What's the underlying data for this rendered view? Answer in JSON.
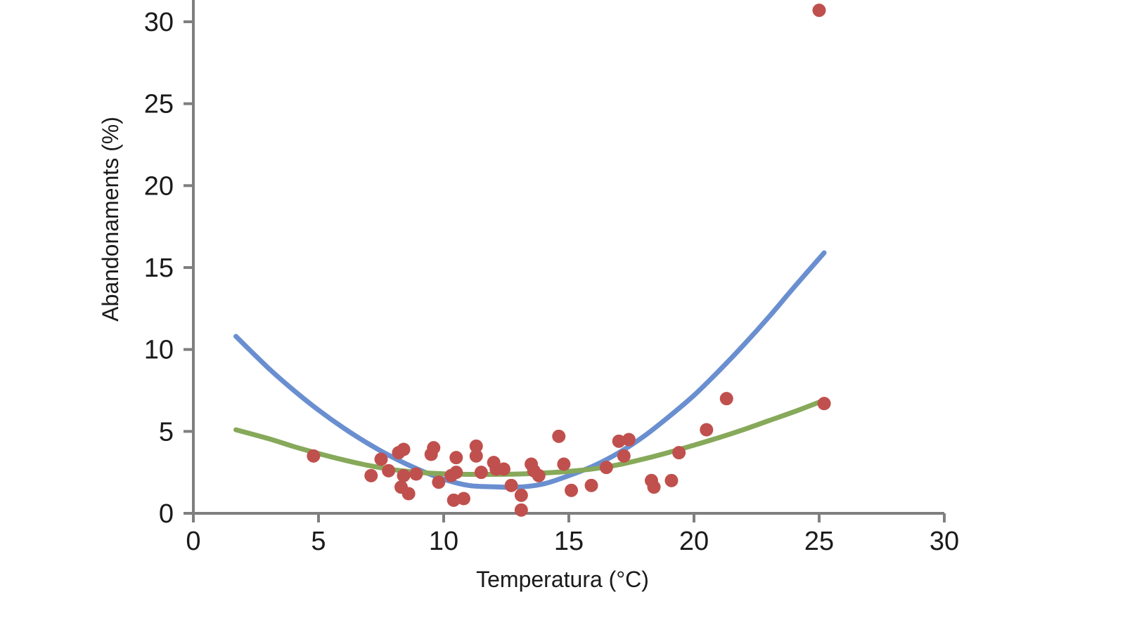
{
  "chart_data": {
    "type": "scatter",
    "title": "",
    "xlabel": "Temperatura (°C)",
    "ylabel": "Abandonaments (%)",
    "xlim": [
      0,
      30
    ],
    "ylim": [
      0,
      30
    ],
    "x_ticks": [
      "0",
      "5",
      "10",
      "15",
      "20",
      "25",
      "30"
    ],
    "y_ticks": [
      "0",
      "5",
      "10",
      "15",
      "20",
      "25",
      "30"
    ],
    "grid": false,
    "legend": "none",
    "colors": {
      "points": "#c0504d",
      "curve_blue": "#6a8fd0",
      "curve_green": "#86a95a",
      "axis": "#7f7f7f"
    },
    "series": [
      {
        "type": "scatter",
        "points": [
          [
            4.8,
            3.5
          ],
          [
            7.1,
            2.3
          ],
          [
            7.5,
            3.3
          ],
          [
            7.8,
            2.6
          ],
          [
            8.2,
            3.7
          ],
          [
            8.3,
            1.6
          ],
          [
            8.4,
            3.9
          ],
          [
            8.4,
            2.3
          ],
          [
            8.6,
            1.2
          ],
          [
            8.9,
            2.4
          ],
          [
            9.5,
            3.6
          ],
          [
            9.6,
            4.0
          ],
          [
            9.8,
            1.9
          ],
          [
            10.3,
            2.3
          ],
          [
            10.4,
            0.8
          ],
          [
            10.5,
            3.4
          ],
          [
            10.5,
            2.5
          ],
          [
            10.8,
            0.9
          ],
          [
            11.3,
            4.1
          ],
          [
            11.3,
            3.5
          ],
          [
            11.5,
            2.5
          ],
          [
            12.0,
            3.1
          ],
          [
            12.1,
            2.7
          ],
          [
            12.4,
            2.7
          ],
          [
            12.7,
            1.7
          ],
          [
            13.1,
            0.2
          ],
          [
            13.1,
            1.1
          ],
          [
            13.5,
            3.0
          ],
          [
            13.6,
            2.6
          ],
          [
            13.8,
            2.3
          ],
          [
            14.6,
            4.7
          ],
          [
            14.8,
            3.0
          ],
          [
            15.1,
            1.4
          ],
          [
            15.9,
            1.7
          ],
          [
            16.5,
            2.8
          ],
          [
            17.0,
            4.4
          ],
          [
            17.2,
            3.5
          ],
          [
            17.4,
            4.5
          ],
          [
            18.3,
            2.0
          ],
          [
            18.4,
            1.6
          ],
          [
            19.1,
            2.0
          ],
          [
            19.4,
            3.7
          ],
          [
            20.5,
            5.1
          ],
          [
            21.3,
            7.0
          ],
          [
            25.0,
            30.7
          ],
          [
            25.2,
            6.7
          ]
        ]
      },
      {
        "type": "line",
        "x": [
          1.7,
          3.0,
          4.0,
          5.0,
          6.0,
          7.0,
          8.0,
          9.0,
          10.0,
          11.0,
          12.0,
          13.0,
          14.0,
          15.0,
          16.0,
          17.0,
          18.0,
          19.0,
          20.0,
          21.0,
          22.0,
          23.0,
          24.0,
          25.2
        ],
        "y": [
          10.8,
          8.86,
          7.52,
          6.3,
          5.21,
          4.24,
          3.39,
          2.67,
          2.08,
          1.7,
          1.62,
          1.6,
          1.8,
          2.3,
          2.9,
          3.7,
          4.7,
          5.9,
          7.2,
          8.7,
          10.3,
          12.0,
          13.8,
          15.9
        ]
      },
      {
        "type": "line",
        "x": [
          1.7,
          3.0,
          4.0,
          5.0,
          6.0,
          7.0,
          8.0,
          9.0,
          10.0,
          11.0,
          12.0,
          13.0,
          14.0,
          15.0,
          16.0,
          17.0,
          18.0,
          19.0,
          20.0,
          21.0,
          22.0,
          23.0,
          24.0,
          25.2
        ],
        "y": [
          5.1,
          4.56,
          4.08,
          3.65,
          3.26,
          2.92,
          2.66,
          2.5,
          2.41,
          2.38,
          2.38,
          2.4,
          2.46,
          2.56,
          2.72,
          2.97,
          3.32,
          3.72,
          4.16,
          4.62,
          5.12,
          5.66,
          6.2,
          6.9
        ]
      }
    ]
  }
}
